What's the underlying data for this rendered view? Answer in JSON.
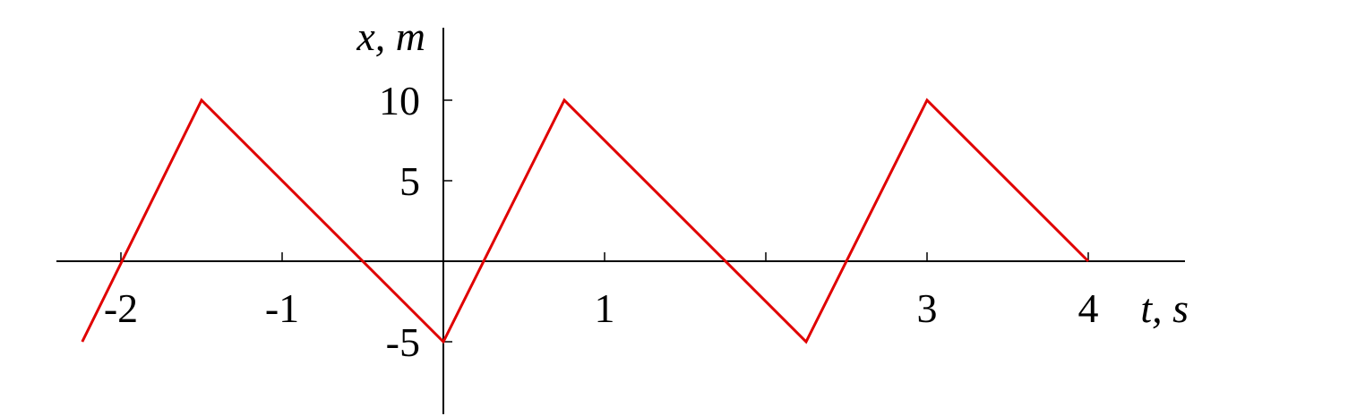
{
  "chart_data": {
    "type": "line",
    "title": "",
    "xlabel": "t, s",
    "ylabel": "x, m",
    "xlim": [
      -2.4,
      4.6
    ],
    "ylim": [
      -9.5,
      14.5
    ],
    "grid": false,
    "legend": "none",
    "x_ticks": [
      {
        "value": -2,
        "label": "-2"
      },
      {
        "value": -1,
        "label": "-1"
      },
      {
        "value": 0,
        "label": ""
      },
      {
        "value": 1,
        "label": "1"
      },
      {
        "value": 2,
        "label": ""
      },
      {
        "value": 3,
        "label": "3"
      },
      {
        "value": 4,
        "label": "4"
      }
    ],
    "y_ticks": [
      {
        "value": -5,
        "label": "-5"
      },
      {
        "value": 5,
        "label": "5"
      },
      {
        "value": 10,
        "label": "10"
      }
    ],
    "series": [
      {
        "color": "#e00000",
        "points": [
          {
            "x": -2.24,
            "y": -5
          },
          {
            "x": -1.5,
            "y": 10
          },
          {
            "x": 0,
            "y": -5
          },
          {
            "x": 0.75,
            "y": 10
          },
          {
            "x": 2.25,
            "y": -5
          },
          {
            "x": 3,
            "y": 10
          },
          {
            "x": 4,
            "y": 0
          }
        ]
      }
    ]
  }
}
